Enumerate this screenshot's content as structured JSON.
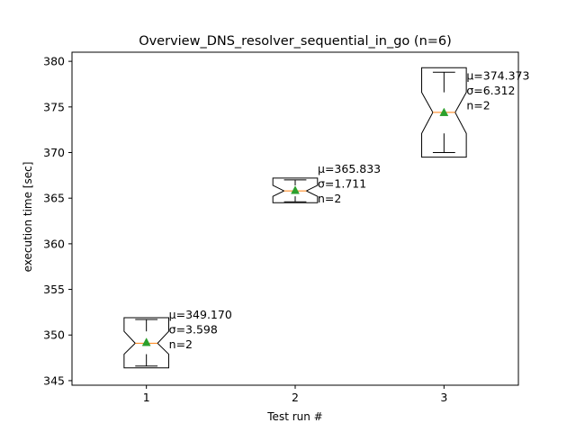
{
  "chart_data": {
    "type": "box",
    "title": "Overview_DNS_resolver_sequential_in_go (n=6)",
    "xlabel": "Test run #",
    "ylabel": "execution time [sec]",
    "xlim": [
      0.5,
      3.5
    ],
    "ylim": [
      344.5,
      381.0
    ],
    "xticks": [
      "1",
      "2",
      "3"
    ],
    "yticks": [
      345,
      350,
      355,
      360,
      365,
      370,
      375,
      380
    ],
    "grid": false,
    "mean_marker_color": "#2ca02c",
    "median_color": "#ff7f0e",
    "boxes": [
      {
        "x": 1,
        "whisker_low": 346.6,
        "q1": 347.9,
        "notch_low": 346.4,
        "median": 349.1,
        "notch_high": 351.9,
        "q3": 350.4,
        "whisker_high": 351.7,
        "mean": 349.17,
        "labels": [
          "μ=349.170",
          "σ=3.598",
          "n=2"
        ]
      },
      {
        "x": 2,
        "whisker_low": 364.6,
        "q1": 365.2,
        "notch_low": 364.5,
        "median": 365.8,
        "notch_high": 367.2,
        "q3": 366.4,
        "whisker_high": 367.0,
        "mean": 365.833,
        "labels": [
          "μ=365.833",
          "σ=1.711",
          "n=2"
        ]
      },
      {
        "x": 3,
        "whisker_low": 370.0,
        "q1": 372.1,
        "notch_low": 369.5,
        "median": 374.4,
        "notch_high": 379.3,
        "q3": 376.6,
        "whisker_high": 378.8,
        "mean": 374.373,
        "labels": [
          "μ=374.373",
          "σ=6.312",
          "n=2"
        ]
      }
    ]
  }
}
